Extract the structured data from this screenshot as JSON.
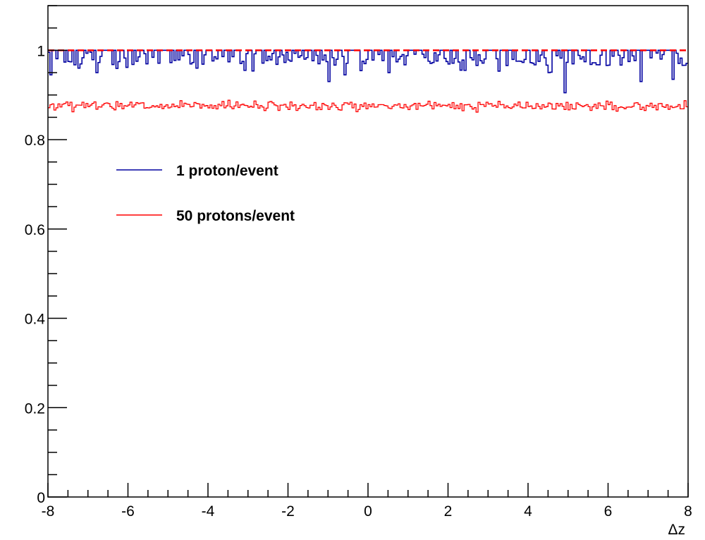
{
  "chart_data": {
    "type": "line",
    "title": "",
    "xlabel": "Δz",
    "ylabel": "",
    "xlim": [
      -8,
      8
    ],
    "ylim": [
      0,
      1.1
    ],
    "x_ticks": [
      -8,
      -6,
      -4,
      -2,
      0,
      2,
      4,
      6,
      8
    ],
    "x_tick_labels": [
      "-8",
      "-6",
      "-4",
      "-2",
      "0",
      "2",
      "4",
      "6",
      "8"
    ],
    "y_ticks": [
      0,
      0.2,
      0.4,
      0.6,
      0.8,
      1
    ],
    "y_tick_labels": [
      "0",
      "0.2",
      "0.4",
      "0.6",
      "0.8",
      "1"
    ],
    "grid": false,
    "legend_position": "upper-left",
    "bins": 320,
    "series": [
      {
        "name": "1 proton/event",
        "color": "#0000a0",
        "style": "step",
        "typical_value": 0.98,
        "range": [
          0.905,
          1.0
        ],
        "dips": [
          {
            "x": -7.9,
            "y": 0.945
          },
          {
            "x": -7.2,
            "y": 0.96
          },
          {
            "x": -6.8,
            "y": 0.95
          },
          {
            "x": -4.3,
            "y": 0.96
          },
          {
            "x": -3.1,
            "y": 0.955
          },
          {
            "x": -1.0,
            "y": 0.93
          },
          {
            "x": -0.6,
            "y": 0.945
          },
          {
            "x": 0.5,
            "y": 0.95
          },
          {
            "x": 2.4,
            "y": 0.955
          },
          {
            "x": 4.5,
            "y": 0.95
          },
          {
            "x": 4.9,
            "y": 0.905
          },
          {
            "x": 6.8,
            "y": 0.93
          },
          {
            "x": 7.6,
            "y": 0.935
          }
        ]
      },
      {
        "name": "50 protons/event",
        "color": "#ff0000",
        "style": "step",
        "typical_value": 0.875,
        "range": [
          0.86,
          0.895
        ]
      },
      {
        "name": "",
        "color": "#ff0000",
        "style": "dashed",
        "typical_value": 1.0,
        "range": [
          1.0,
          1.0
        ]
      }
    ]
  }
}
